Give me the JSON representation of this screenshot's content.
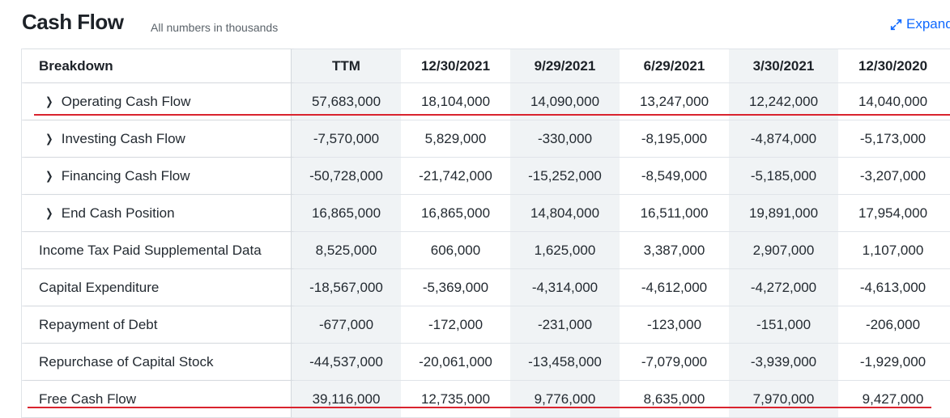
{
  "header": {
    "title": "Cash Flow",
    "subtitle": "All numbers in thousands",
    "expand_label": "Expand"
  },
  "table": {
    "breakdown_label": "Breakdown",
    "columns": [
      "TTM",
      "12/30/2021",
      "9/29/2021",
      "6/29/2021",
      "3/30/2021",
      "12/30/2020"
    ],
    "rows": [
      {
        "label": "Operating Cash Flow",
        "expandable": true,
        "values": [
          "57,683,000",
          "18,104,000",
          "14,090,000",
          "13,247,000",
          "12,242,000",
          "14,040,000"
        ]
      },
      {
        "label": "Investing Cash Flow",
        "expandable": true,
        "values": [
          "-7,570,000",
          "5,829,000",
          "-330,000",
          "-8,195,000",
          "-4,874,000",
          "-5,173,000"
        ]
      },
      {
        "label": "Financing Cash Flow",
        "expandable": true,
        "values": [
          "-50,728,000",
          "-21,742,000",
          "-15,252,000",
          "-8,549,000",
          "-5,185,000",
          "-3,207,000"
        ]
      },
      {
        "label": "End Cash Position",
        "expandable": true,
        "values": [
          "16,865,000",
          "16,865,000",
          "14,804,000",
          "16,511,000",
          "19,891,000",
          "17,954,000"
        ]
      },
      {
        "label": "Income Tax Paid Supplemental Data",
        "expandable": false,
        "values": [
          "8,525,000",
          "606,000",
          "1,625,000",
          "3,387,000",
          "2,907,000",
          "1,107,000"
        ]
      },
      {
        "label": "Capital Expenditure",
        "expandable": false,
        "values": [
          "-18,567,000",
          "-5,369,000",
          "-4,314,000",
          "-4,612,000",
          "-4,272,000",
          "-4,613,000"
        ]
      },
      {
        "label": "Repayment of Debt",
        "expandable": false,
        "values": [
          "-677,000",
          "-172,000",
          "-231,000",
          "-123,000",
          "-151,000",
          "-206,000"
        ]
      },
      {
        "label": "Repurchase of Capital Stock",
        "expandable": false,
        "values": [
          "-44,537,000",
          "-20,061,000",
          "-13,458,000",
          "-7,079,000",
          "-3,939,000",
          "-1,929,000"
        ]
      },
      {
        "label": "Free Cash Flow",
        "expandable": false,
        "values": [
          "39,116,000",
          "12,735,000",
          "9,776,000",
          "8,635,000",
          "7,970,000",
          "9,427,000"
        ]
      }
    ]
  },
  "colors": {
    "accent": "#0f69ff",
    "highlight_line": "#d9232e",
    "shaded_column": "#f0f3f5"
  },
  "icons": {
    "expand": "expand-arrows-icon",
    "row_expander": "chevron-right-icon"
  }
}
